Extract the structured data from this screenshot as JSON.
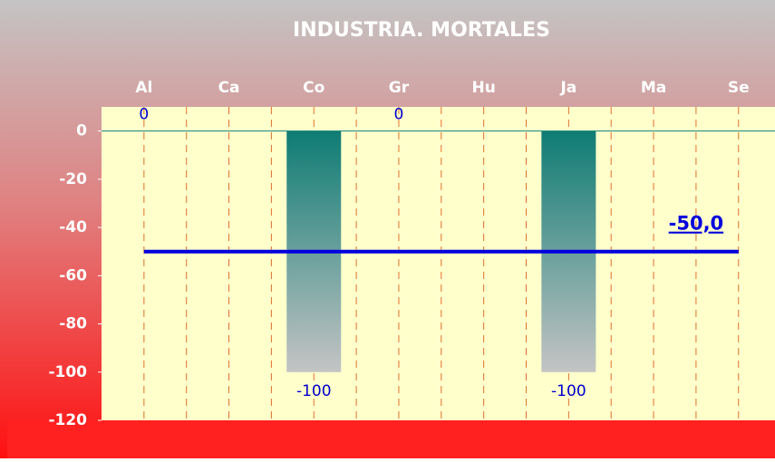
{
  "chart_data": {
    "type": "bar",
    "title": "INDUSTRIA. MORTALES",
    "categories": [
      "Al",
      "Ca",
      "Co",
      "Gr",
      "Hu",
      "Ja",
      "Ma",
      "Se"
    ],
    "values": [
      0,
      null,
      -100,
      0,
      null,
      -100,
      null,
      null
    ],
    "ylim": [
      -120,
      10
    ],
    "yticks": [
      -120,
      -100,
      -80,
      -60,
      -40,
      -20,
      0
    ],
    "reference_line": {
      "value": -50,
      "value_label": "-50,0",
      "color": "#0000dd"
    }
  }
}
